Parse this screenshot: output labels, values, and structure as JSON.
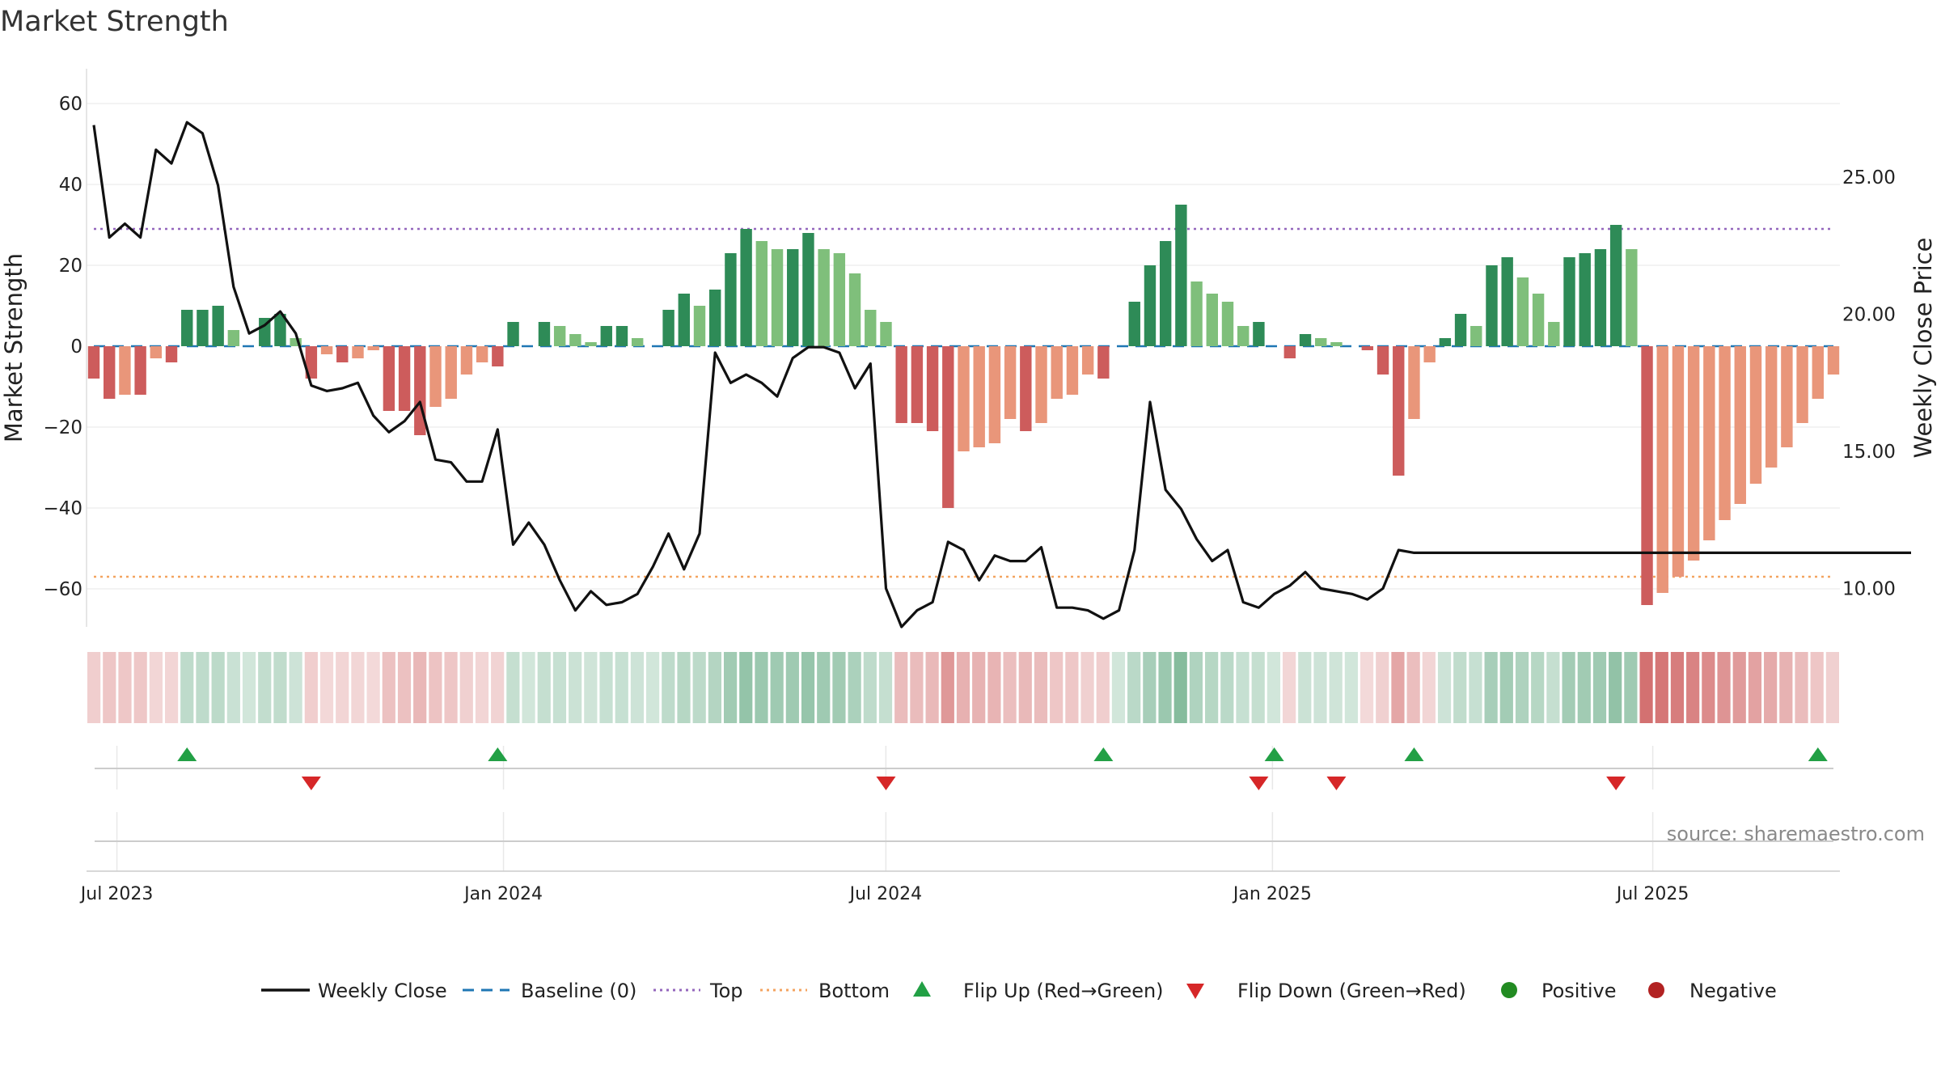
{
  "source": "source: sharemaestro.com",
  "colors": {
    "strong_green": "#2e8b57",
    "light_green": "#7fbf7b",
    "strong_red": "#cd5c5c",
    "light_red": "#e9967a",
    "close_line": "#111111",
    "baseline": "#1f77b4",
    "top": "#9467bd",
    "bottom": "#ff7f0e",
    "flip_up": "#22a045",
    "flip_down": "#d62728",
    "positive": "#228b22",
    "negative": "#b22222"
  },
  "chart_data": {
    "type": "bar",
    "title": "Market Strength",
    "ylabel": "Market Strength",
    "y2label": "Weekly Close Price",
    "ylim": [
      -70,
      70
    ],
    "y2lim": [
      7.3,
      27.7
    ],
    "x_dates": [
      "2023-06-20",
      "2025-09-25"
    ],
    "grid": true,
    "yticks": [
      60,
      40,
      20,
      0,
      -20,
      -40,
      -60
    ],
    "ytick_labels": [
      "60",
      "40",
      "20",
      "0",
      "−20",
      "−40",
      "−60"
    ],
    "y2ticks": [
      25,
      20,
      15,
      10
    ],
    "y2tick_labels": [
      "25.00",
      "20.00",
      "15.00",
      "10.00"
    ],
    "xtick_labels": [
      "Jul 2023",
      "Jan 2024",
      "Jul 2024",
      "Jan 2025",
      "Jul 2025"
    ],
    "xtick_dates": [
      "2023-07-01",
      "2024-01-01",
      "2024-07-01",
      "2025-01-01",
      "2025-07-01"
    ],
    "top_level": 29,
    "bottom_level": -57,
    "baseline_level": 0,
    "strength": [
      -8,
      -13,
      -12,
      -12,
      -3,
      -4,
      9,
      9,
      10,
      4,
      0,
      7,
      8,
      2,
      -8,
      -2,
      -4,
      -3,
      -1,
      -16,
      -16,
      -22,
      -15,
      -13,
      -7,
      -4,
      -5,
      6,
      0,
      6,
      5,
      3,
      1,
      5,
      5,
      2,
      0,
      9,
      13,
      10,
      14,
      23,
      29,
      26,
      24,
      24,
      28,
      24,
      23,
      18,
      9,
      6,
      -19,
      -19,
      -21,
      -40,
      -26,
      -25,
      -24,
      -18,
      -21,
      -19,
      -13,
      -12,
      -7,
      -8,
      0,
      11,
      20,
      26,
      35,
      16,
      13,
      11,
      5,
      6,
      0,
      -3,
      3,
      2,
      1,
      0,
      -1,
      -7,
      -32,
      -18,
      -4,
      2,
      8,
      5,
      20,
      22,
      17,
      13,
      6,
      22,
      23,
      24,
      30,
      24,
      -64,
      -61,
      -57,
      -53,
      -48,
      -43,
      -39,
      -34,
      -30,
      -25,
      -19,
      -13,
      -7
    ],
    "weekly_close": [
      26.9,
      22.8,
      23.3,
      22.8,
      26.0,
      25.5,
      27.0,
      26.6,
      24.7,
      21.0,
      19.3,
      19.6,
      20.1,
      19.3,
      17.4,
      17.2,
      17.3,
      17.5,
      16.3,
      15.7,
      16.1,
      16.8,
      14.7,
      14.6,
      13.9,
      13.9,
      15.8,
      11.6,
      12.4,
      11.6,
      10.3,
      9.2,
      9.9,
      9.4,
      9.5,
      9.8,
      10.8,
      12.0,
      10.7,
      12.0,
      18.6,
      17.5,
      17.8,
      17.5,
      17.0,
      18.4,
      18.8,
      18.8,
      18.6,
      17.3,
      18.2,
      10.0,
      8.6,
      9.2,
      9.5,
      11.7,
      11.4,
      10.3,
      11.2,
      11.0,
      11.0,
      11.5,
      9.3,
      9.3,
      9.2,
      8.9,
      9.2,
      11.4,
      16.8,
      13.6,
      12.9,
      11.8,
      11.0,
      11.4,
      9.5,
      9.3,
      9.8,
      10.1,
      10.6,
      10.0,
      9.9,
      9.8,
      9.6,
      10.0,
      11.4,
      11.3,
      11.3,
      11.3,
      11.3,
      11.3,
      11.3,
      11.3,
      11.3,
      11.3,
      11.3,
      11.3,
      11.3,
      11.3,
      11.3,
      11.3,
      11.3,
      11.3,
      11.3,
      11.3,
      11.3,
      11.3,
      11.3,
      11.3,
      11.3,
      11.3,
      11.3,
      11.3,
      11.3,
      11.3,
      11.3,
      11.3,
      11.3,
      11.3
    ],
    "flip_up_weeks": [
      6,
      26,
      65,
      76,
      85,
      111
    ],
    "flip_down_weeks": [
      14,
      51,
      75,
      80,
      98
    ],
    "legend": [
      "Weekly Close",
      "Baseline (0)",
      "Top",
      "Bottom",
      "Flip Up (Red→Green)",
      "Flip Down (Green→Red)",
      "Positive",
      "Negative"
    ]
  }
}
